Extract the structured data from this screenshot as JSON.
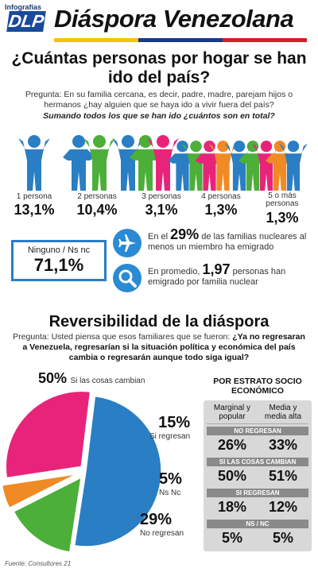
{
  "header": {
    "logo_small": "Infografías",
    "logo_big": "DLP",
    "title": "Diáspora Venezolana",
    "flag_colors": [
      "#f5c400",
      "#1a3a8a",
      "#d0202a"
    ]
  },
  "section1": {
    "title": "¿Cuántas personas por hogar se han ido del país?",
    "question": "Pregunta: En su familia cercana, es decir, padre, madre, parejam hijos o hermanos ¿hay alguien que se haya ido a vivir fuera del país?",
    "question2": "Sumando todos los que se han ido ¿cuántos son en total?",
    "groups": [
      {
        "label": "1 persona",
        "value": "13,1%"
      },
      {
        "label": "2 personas",
        "value": "10,4%"
      },
      {
        "label": "3 personas",
        "value": "3,1%"
      },
      {
        "label": "4 personas",
        "value": "1,3%"
      },
      {
        "label": "5 o más personas",
        "value": "1,3%"
      }
    ],
    "ninguno_label": "Ninguno / Ns nc",
    "ninguno_value": "71,1%",
    "stat1_pre": "En el",
    "stat1_num": "29%",
    "stat1_post": "de las familias nucleares al menos un miembro ha emigrado",
    "stat2_pre": "En promedio,",
    "stat2_num": "1,97",
    "stat2_post": "personas han emigrado por familia nuclear",
    "person_colors": [
      "#2a7ec3",
      "#4caf3a",
      "#e8247a",
      "#f08a24",
      "#2a7ec3"
    ]
  },
  "section2": {
    "title": "Reversibilidad de la diáspora",
    "question_pre": "Pregunta: Usted piensa que esos familiares que se fueron:",
    "question_bold": "¿Ya no regresaran a Venezuela, regresarían si la situación política y económica del país cambia o regresarán aunque todo siga igual?",
    "pie_labels": [
      {
        "pct": "50%",
        "txt": "Si las cosas cambian"
      },
      {
        "pct": "15%",
        "txt": "Si regresan"
      },
      {
        "pct": "5%",
        "txt": "Ns Nc"
      },
      {
        "pct": "29%",
        "txt": "No regresan"
      }
    ],
    "estrato": {
      "title": "POR ESTRATO SOCIO ECONÓMICO",
      "col1": "Marginal y popular",
      "col2": "Media y media alta",
      "sections": [
        {
          "label": "NO REGRESAN",
          "v1": "26%",
          "v2": "33%"
        },
        {
          "label": "SI LAS COSAS CAMBIAN",
          "v1": "50%",
          "v2": "51%"
        },
        {
          "label": "SI REGRESAN",
          "v1": "18%",
          "v2": "12%"
        },
        {
          "label": "NS / NC",
          "v1": "5%",
          "v2": "5%"
        }
      ]
    }
  },
  "footer": {
    "source": "Fuente: Consultores 21"
  },
  "chart_data": {
    "type": "pie",
    "categories": [
      "Si las cosas cambian",
      "Si regresan",
      "Ns Nc",
      "No regresan"
    ],
    "values": [
      50,
      15,
      5,
      29
    ],
    "colors": [
      "#2a7ec3",
      "#4caf3a",
      "#f08a24",
      "#e8247a"
    ]
  }
}
